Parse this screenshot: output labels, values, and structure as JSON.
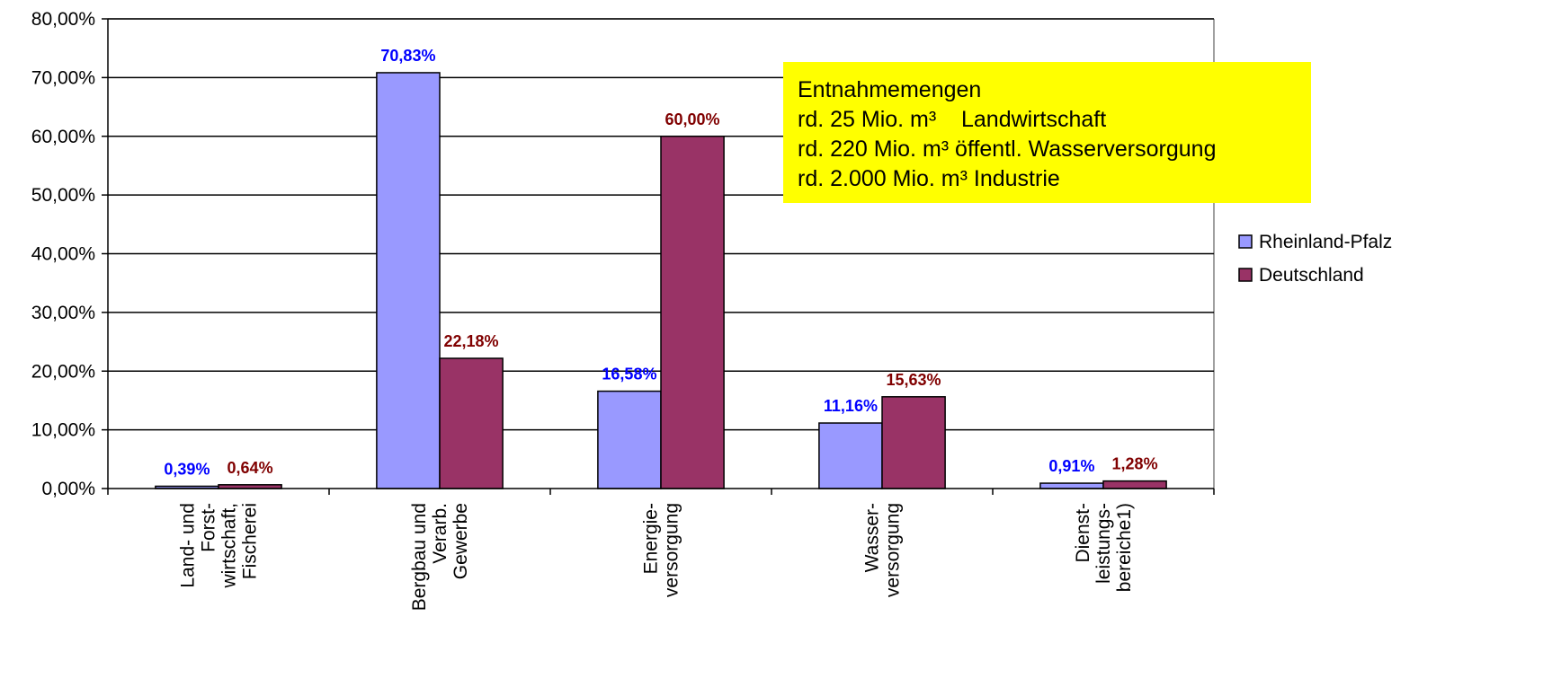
{
  "chart_data": {
    "type": "bar",
    "categories": [
      [
        "Land- und",
        "Forst-",
        "wirtschaft,",
        "Fischerei"
      ],
      [
        "Bergbau und",
        "Verarb.",
        "Gewerbe"
      ],
      [
        "Energie-",
        "versorgung"
      ],
      [
        "Wasser-",
        "versorgung"
      ],
      [
        "Dienst-",
        "leistungs-",
        "bereiche1)"
      ]
    ],
    "series": [
      {
        "name": "Rheinland-Pfalz",
        "values": [
          0.39,
          70.83,
          16.58,
          11.16,
          0.91
        ],
        "labels": [
          "0,39%",
          "70,83%",
          "16,58%",
          "11,16%",
          "0,91%"
        ],
        "color": "#9999ff",
        "label_color": "#0000ff"
      },
      {
        "name": "Deutschland",
        "values": [
          0.64,
          22.18,
          60.0,
          15.63,
          1.28
        ],
        "labels": [
          "0,64%",
          "22,18%",
          "60,00%",
          "15,63%",
          "1,28%"
        ],
        "color": "#993366",
        "label_color": "#800000"
      }
    ],
    "y_ticks": [
      "0,00%",
      "10,00%",
      "20,00%",
      "30,00%",
      "40,00%",
      "50,00%",
      "60,00%",
      "70,00%",
      "80,00%"
    ],
    "ylim": [
      0,
      80
    ],
    "grid": true,
    "legend_position": "right",
    "annotation": {
      "lines": [
        "Entnahmemengen",
        "rd. 25 Mio. m³    Landwirtschaft",
        "rd. 220 Mio. m³ öffentl. Wasserversorgung",
        "rd. 2.000 Mio. m³ Industrie"
      ],
      "background": "#ffff00"
    }
  }
}
